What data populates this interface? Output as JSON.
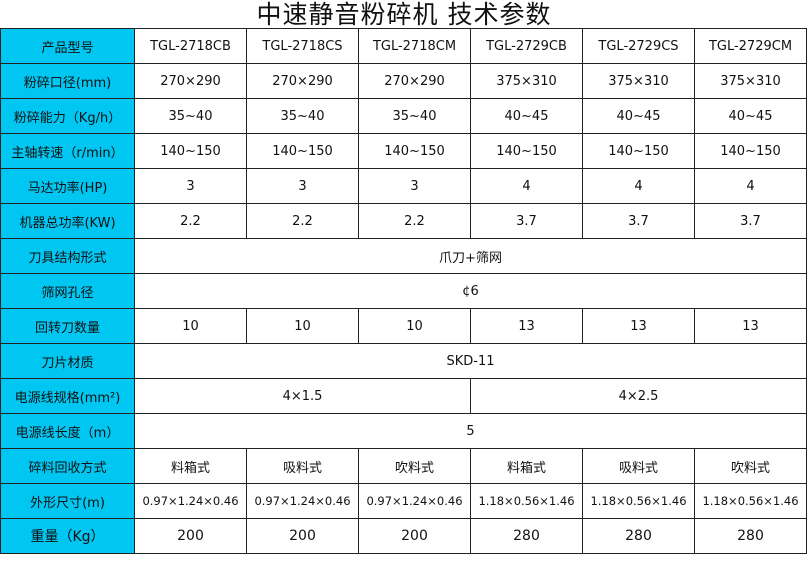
{
  "title": "中速静音粉碎机  技术参数",
  "header_color": "#00c6f2",
  "rows": [
    {
      "label": "产品型号",
      "cells": [
        "TGL-2718CB",
        "TGL-2718CS",
        "TGL-2718CM",
        "TGL-2729CB",
        "TGL-2729CS",
        "TGL-2729CM"
      ]
    },
    {
      "label": "粉碎口径(mm)",
      "cells": [
        "270×290",
        "270×290",
        "270×290",
        "375×310",
        "375×310",
        "375×310"
      ]
    },
    {
      "label": "粉碎能力（Kg/h）",
      "cells": [
        "35~40",
        "35~40",
        "35~40",
        "40~45",
        "40~45",
        "40~45"
      ]
    },
    {
      "label": "主轴转速（r/min）",
      "cells": [
        "140~150",
        "140~150",
        "140~150",
        "140~150",
        "140~150",
        "140~150"
      ]
    },
    {
      "label": "马达功率(HP)",
      "cells": [
        "3",
        "3",
        "3",
        "4",
        "4",
        "4"
      ]
    },
    {
      "label": "机器总功率(KW)",
      "cells": [
        "2.2",
        "2.2",
        "2.2",
        "3.7",
        "3.7",
        "3.7"
      ]
    },
    {
      "label": "刀具结构形式",
      "cells": [
        "爪刀+筛网"
      ]
    },
    {
      "label": "筛网孔径",
      "cells": [
        "¢6"
      ]
    },
    {
      "label": "回转刀数量",
      "cells": [
        "10",
        "10",
        "10",
        "13",
        "13",
        "13"
      ]
    },
    {
      "label": "刀片材质",
      "cells": [
        "SKD-11"
      ]
    },
    {
      "label": "电源线规格(mm²)",
      "cells": [
        "4×1.5",
        "4×2.5"
      ]
    },
    {
      "label": "电源线长度（m）",
      "cells": [
        "5"
      ]
    },
    {
      "label": "碎料回收方式",
      "cells": [
        "料箱式",
        "吸料式",
        "吹料式",
        "料箱式",
        "吸料式",
        "吹料式"
      ]
    },
    {
      "label": "外形尺寸(m)",
      "cells": [
        "0.97×1.24×0.46",
        "0.97×1.24×0.46",
        "0.97×1.24×0.46",
        "1.18×0.56×1.46",
        "1.18×0.56×1.46",
        "1.18×0.56×1.46"
      ]
    },
    {
      "label": "重量（Kg）",
      "cells": [
        "200",
        "200",
        "200",
        "280",
        "280",
        "280"
      ]
    }
  ]
}
